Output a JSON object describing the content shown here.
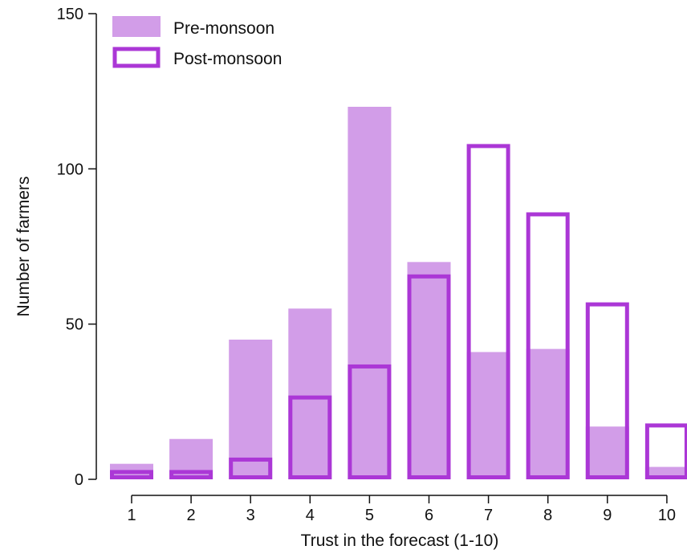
{
  "chart_data": {
    "type": "bar",
    "xlabel": "Trust in the forecast (1-10)",
    "ylabel": "Number of farmers",
    "ylim": [
      0,
      150
    ],
    "yticks": [
      0,
      50,
      100,
      150
    ],
    "categories": [
      "1",
      "2",
      "3",
      "4",
      "5",
      "6",
      "7",
      "8",
      "9",
      "10"
    ],
    "series": [
      {
        "name": "Pre-monsoon",
        "values": [
          5,
          13,
          45,
          55,
          120,
          70,
          41,
          42,
          17,
          4
        ],
        "style": "filled",
        "color": "#d29de8"
      },
      {
        "name": "Post-monsoon",
        "values": [
          3,
          3,
          7,
          27,
          37,
          66,
          108,
          86,
          57,
          18
        ],
        "style": "outline",
        "color": "#ab37d6"
      }
    ],
    "legend_position": "top-left",
    "grid": false
  }
}
